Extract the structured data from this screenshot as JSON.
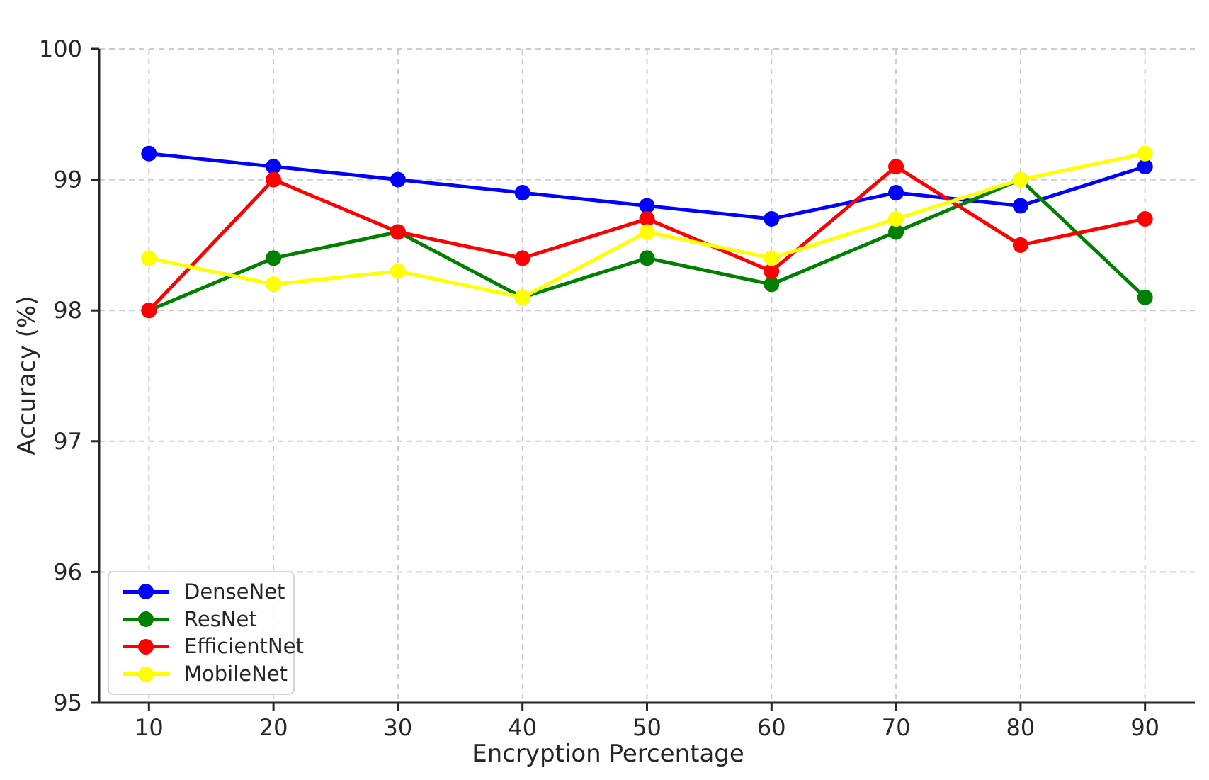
{
  "chart_data": {
    "type": "line",
    "title": "",
    "xlabel": "Encryption Percentage",
    "ylabel": "Accuracy (%)",
    "x": [
      10,
      20,
      30,
      40,
      50,
      60,
      70,
      80,
      90
    ],
    "xticks": [
      10,
      20,
      30,
      40,
      50,
      60,
      70,
      80,
      90
    ],
    "yticks": [
      95,
      96,
      97,
      98,
      99,
      100
    ],
    "xlim": [
      6,
      94
    ],
    "ylim": [
      95,
      100
    ],
    "grid": true,
    "grid_style": "dashed",
    "legend_position": "lower-left",
    "series": [
      {
        "name": "DenseNet",
        "color": "#0000ff",
        "values": [
          99.2,
          99.1,
          99.0,
          98.9,
          98.8,
          98.7,
          98.9,
          98.8,
          99.1
        ]
      },
      {
        "name": "ResNet",
        "color": "#008000",
        "values": [
          98.0,
          98.4,
          98.6,
          98.1,
          98.4,
          98.2,
          98.6,
          99.0,
          98.1
        ]
      },
      {
        "name": "EfficientNet",
        "color": "#ff0000",
        "values": [
          98.0,
          99.0,
          98.6,
          98.4,
          98.7,
          98.3,
          99.1,
          98.5,
          98.7
        ]
      },
      {
        "name": "MobileNet",
        "color": "#ffff00",
        "values": [
          98.4,
          98.2,
          98.3,
          98.1,
          98.6,
          98.4,
          98.7,
          99.0,
          99.2
        ]
      }
    ]
  },
  "style": {
    "grid_color": "#cccccc",
    "spine_color": "#262626",
    "tick_label_color": "#262626",
    "background": "#ffffff",
    "line_width": 5,
    "marker_radius": 11
  }
}
